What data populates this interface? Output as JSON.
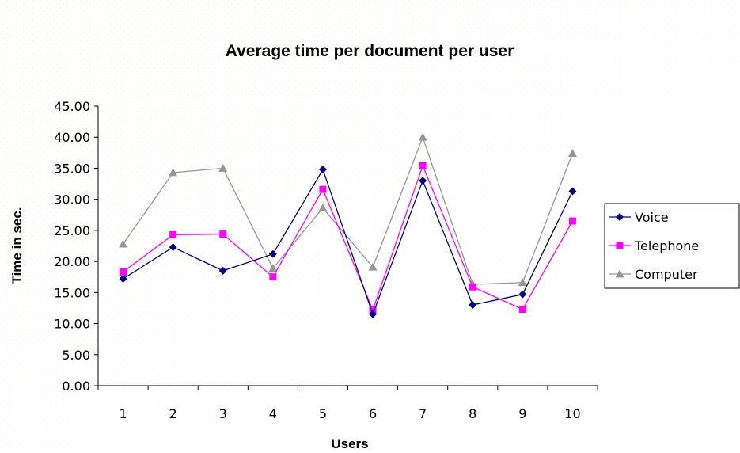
{
  "chart_data": {
    "type": "line",
    "title": "Average time per document per user",
    "xlabel": "Users",
    "ylabel": "Time in sec.",
    "categories": [
      "1",
      "2",
      "3",
      "4",
      "5",
      "6",
      "7",
      "8",
      "9",
      "10"
    ],
    "ylim": [
      0,
      45
    ],
    "y_ticks": [
      "0.00",
      "5.00",
      "10.00",
      "15.00",
      "20.00",
      "25.00",
      "30.00",
      "35.00",
      "40.00",
      "45.00"
    ],
    "grid": false,
    "legend_position": "right",
    "series": [
      {
        "name": "Voice",
        "color": "#000080",
        "marker": "diamond",
        "values": [
          17.2,
          22.3,
          18.5,
          21.2,
          34.8,
          11.5,
          33.0,
          13.0,
          14.7,
          31.3
        ]
      },
      {
        "name": "Telephone",
        "color": "#ff00ff",
        "marker": "square",
        "values": [
          18.3,
          24.3,
          24.4,
          17.5,
          31.6,
          12.2,
          35.4,
          15.9,
          12.3,
          26.5
        ]
      },
      {
        "name": "Computer",
        "color": "#969696",
        "marker": "triangle",
        "values": [
          22.8,
          34.3,
          35.0,
          18.9,
          28.6,
          19.1,
          40.0,
          16.3,
          16.6,
          37.4
        ]
      }
    ]
  }
}
